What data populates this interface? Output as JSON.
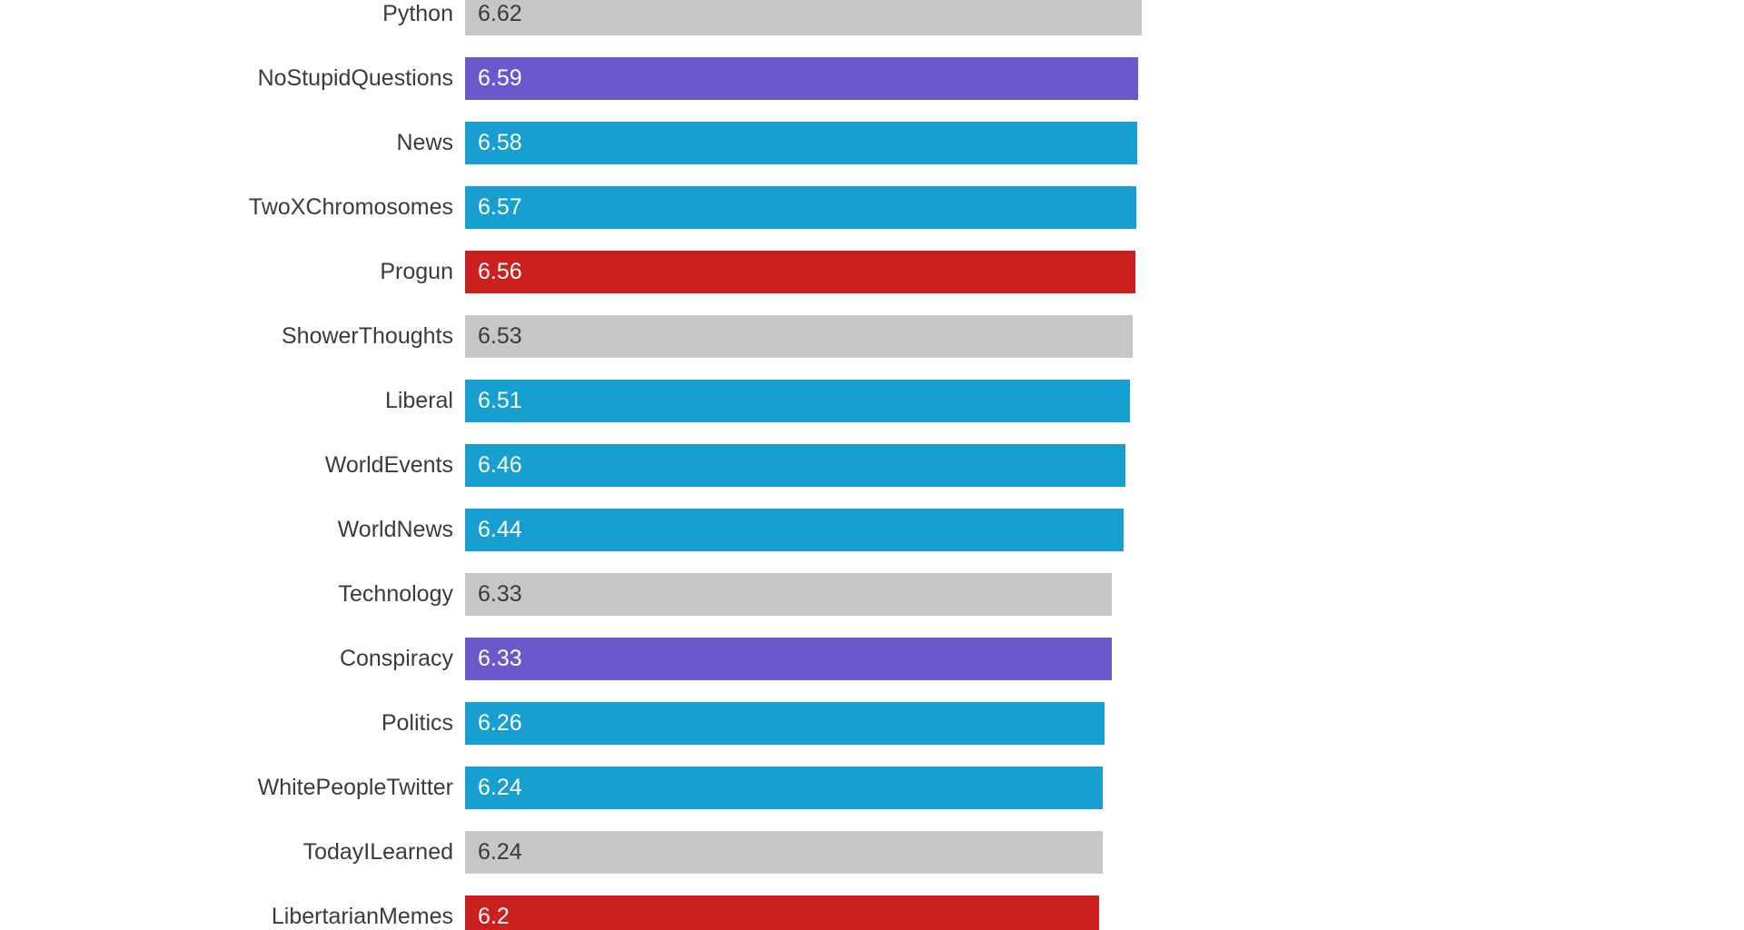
{
  "chart_data": {
    "type": "bar",
    "orientation": "horizontal",
    "title": "",
    "xlabel": "",
    "ylabel": "",
    "xlim": [
      0,
      6.62
    ],
    "grid": false,
    "legend": "none",
    "categories": [
      "Python",
      "NoStupidQuestions",
      "News",
      "TwoXChromosomes",
      "Progun",
      "ShowerThoughts",
      "Liberal",
      "WorldEvents",
      "WorldNews",
      "Technology",
      "Conspiracy",
      "Politics",
      "WhitePeopleTwitter",
      "TodayILearned",
      "LibertarianMemes"
    ],
    "values": [
      6.62,
      6.59,
      6.58,
      6.57,
      6.56,
      6.53,
      6.51,
      6.46,
      6.44,
      6.33,
      6.33,
      6.26,
      6.24,
      6.24,
      6.2
    ],
    "value_labels": [
      "6.62",
      "6.59",
      "6.58",
      "6.57",
      "6.56",
      "6.53",
      "6.51",
      "6.46",
      "6.44",
      "6.33",
      "6.33",
      "6.26",
      "6.24",
      "6.24",
      "6.2"
    ],
    "bar_colors": [
      "gray",
      "purple",
      "blue",
      "blue",
      "red",
      "gray",
      "blue",
      "blue",
      "blue",
      "gray",
      "purple",
      "blue",
      "blue",
      "gray",
      "red"
    ],
    "palette": {
      "gray": "#c6c6c6",
      "blue": "#189fd1",
      "purple": "#6d58cb",
      "red": "#cc2020"
    },
    "value_text_colors": {
      "on_gray": "#3b3b3b",
      "on_color": "#ffffff"
    }
  }
}
